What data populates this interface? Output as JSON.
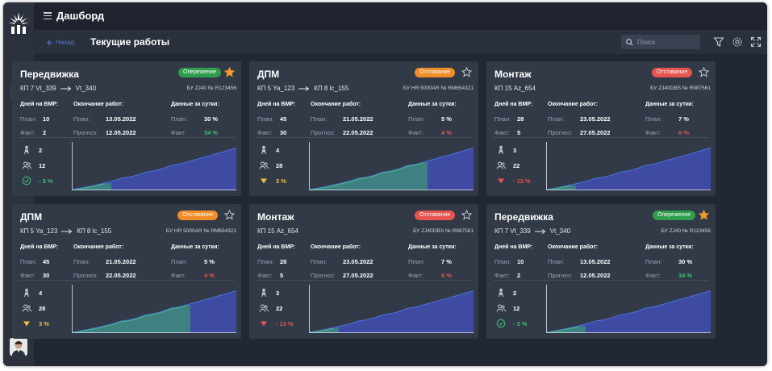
{
  "app": {
    "title": "Дашборд"
  },
  "subbar": {
    "back_label": "Назад",
    "page_title": "Текущие работы",
    "search_placeholder": "Поиск"
  },
  "colors": {
    "ahead": "#2e9e4c",
    "late_orange": "#f28c28",
    "late_red": "#e5544f",
    "star_active": "#f29a2e",
    "plan_fill": "#3f4aa3",
    "fact_fill": "#3f8b7c",
    "plan_line": "#4a74e0",
    "fact_line": "#3fbf6e"
  },
  "labels": {
    "days_vmp": "Дней на ВМР:",
    "finish": "Окончание работ:",
    "daily": "Данные за сутки:",
    "plan": "План:",
    "fact": "Факт:",
    "forecast": "Прогноз:"
  },
  "cards": [
    {
      "title": "Передвижка",
      "status": "Опережение",
      "status_type": "ahead",
      "favorite": true,
      "from": "КП 7  Vt_339",
      "to": "Vt_340",
      "rig": "БУ ZJ40 № R123456",
      "days_plan": "10",
      "days_fact": "2",
      "finish_plan": "13.05.2022",
      "finish_forecast": "12.05.2022",
      "daily_plan": "30 %",
      "daily_fact": "34 %",
      "daily_fact_type": "green",
      "m1": "2",
      "m2": "12",
      "m3": "- 3 %",
      "m3_type": "green",
      "m3_icon": "check",
      "fact_progress": 0.24
    },
    {
      "title": "ДПМ",
      "status": "Отставание",
      "status_type": "late_orange",
      "favorite": false,
      "from": "КП 5  Ya_123",
      "to": "КП 8  lc_155",
      "rig": "БУ HR 5000AR № RM654321",
      "days_plan": "45",
      "days_fact": "30",
      "finish_plan": "21.05.2022",
      "finish_forecast": "22.05.2022",
      "daily_plan": "5 %",
      "daily_fact": "4 %",
      "daily_fact_type": "red",
      "m1": "4",
      "m2": "28",
      "m3": "3 %",
      "m3_type": "yellow",
      "m3_icon": "tri-yellow",
      "fact_progress": 0.72
    },
    {
      "title": "Монтаж",
      "status": "Отставание",
      "status_type": "late_red",
      "favorite": false,
      "from": "КП 15  Az_654",
      "to": "",
      "rig": "БУ ZJ40DBS № R987561",
      "days_plan": "28",
      "days_fact": "5",
      "finish_plan": "23.05.2022",
      "finish_forecast": "27.05.2022",
      "daily_plan": "7 %",
      "daily_fact": "6 %",
      "daily_fact_type": "red",
      "m1": "3",
      "m2": "22",
      "m3": "- 13 %",
      "m3_type": "red",
      "m3_icon": "tri-red",
      "fact_progress": 0.18
    },
    {
      "title": "ДПМ",
      "status": "Отставание",
      "status_type": "late_orange",
      "favorite": false,
      "from": "КП 5  Ya_123",
      "to": "КП 8  lc_155",
      "rig": "БУ HR 5000AR № RM654321",
      "days_plan": "45",
      "days_fact": "30",
      "finish_plan": "21.05.2022",
      "finish_forecast": "22.05.2022",
      "daily_plan": "5 %",
      "daily_fact": "4 %",
      "daily_fact_type": "red",
      "m1": "4",
      "m2": "28",
      "m3": "3 %",
      "m3_type": "yellow",
      "m3_icon": "tri-yellow",
      "fact_progress": 0.72
    },
    {
      "title": "Монтаж",
      "status": "Отставание",
      "status_type": "late_red",
      "favorite": false,
      "from": "КП 15  Az_654",
      "to": "",
      "rig": "БУ ZJ40DBS № R987561",
      "days_plan": "28",
      "days_fact": "5",
      "finish_plan": "23.05.2022",
      "finish_forecast": "27.05.2022",
      "daily_plan": "7 %",
      "daily_fact": "6 %",
      "daily_fact_type": "red",
      "m1": "3",
      "m2": "22",
      "m3": "- 13 %",
      "m3_type": "red",
      "m3_icon": "tri-red",
      "fact_progress": 0.18
    },
    {
      "title": "Передвижка",
      "status": "Опережение",
      "status_type": "ahead",
      "favorite": true,
      "from": "КП 7  Vt_339",
      "to": "Vt_340",
      "rig": "БУ ZJ40 № R123456",
      "days_plan": "10",
      "days_fact": "2",
      "finish_plan": "13.05.2022",
      "finish_forecast": "12.05.2022",
      "daily_plan": "30 %",
      "daily_fact": "34 %",
      "daily_fact_type": "green",
      "m1": "2",
      "m2": "12",
      "m3": "- 3 %",
      "m3_type": "green",
      "m3_icon": "check",
      "fact_progress": 0.24
    }
  ]
}
